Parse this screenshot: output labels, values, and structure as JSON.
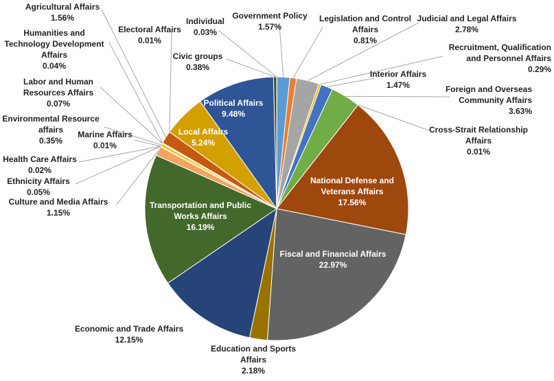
{
  "chart_data": {
    "type": "pie",
    "unit": "%",
    "slices": [
      {
        "label": "Individual",
        "value": 0.03,
        "value_text": "0.03%",
        "color": "#2e7d32"
      },
      {
        "label": "Government Policy",
        "value": 1.57,
        "value_text": "1.57%",
        "color": "#5b9bd5"
      },
      {
        "label": "Legislation and Control Affairs",
        "value": 0.81,
        "value_text": "0.81%",
        "color": "#ed7d31"
      },
      {
        "label": "Judicial and Legal Affairs",
        "value": 2.78,
        "value_text": "2.78%",
        "color": "#a5a5a5"
      },
      {
        "label": "Recruitment, Qualification and Personnel Affairs",
        "value": 0.29,
        "value_text": "0.29%",
        "color": "#ffc000"
      },
      {
        "label": "Interior Affairs",
        "value": 1.47,
        "value_text": "1.47%",
        "color": "#4472c4"
      },
      {
        "label": "Foreign and Overseas Community Affairs",
        "value": 3.63,
        "value_text": "3.63%",
        "color": "#70ad47"
      },
      {
        "label": "Cross-Strait Relationship Affairs",
        "value": 0.01,
        "value_text": "0.01%",
        "color": "#264478"
      },
      {
        "label": "National Defense and Veterans Affairs",
        "value": 17.56,
        "value_text": "17.56%",
        "color": "#9e480e"
      },
      {
        "label": "Fiscal and Financial Affairs",
        "value": 22.97,
        "value_text": "22.97%",
        "color": "#636363"
      },
      {
        "label": "Education and Sports Affairs",
        "value": 2.18,
        "value_text": "2.18%",
        "color": "#997300"
      },
      {
        "label": "Economic and Trade Affairs",
        "value": 12.15,
        "value_text": "12.15%",
        "color": "#264478"
      },
      {
        "label": "Transportation and Public Works Affairs",
        "value": 16.19,
        "value_text": "16.19%",
        "color": "#43682b"
      },
      {
        "label": "Culture and Media Affairs",
        "value": 1.15,
        "value_text": "1.15%",
        "color": "#f4a460"
      },
      {
        "label": "Ethnicity Affairs",
        "value": 0.05,
        "value_text": "0.05%",
        "color": "#bfbfbf"
      },
      {
        "label": "Health Care Affairs",
        "value": 0.02,
        "value_text": "0.02%",
        "color": "#ffd966"
      },
      {
        "label": "Marine Affairs",
        "value": 0.01,
        "value_text": "0.01%",
        "color": "#8faadc"
      },
      {
        "label": "Environmental Resource affairs",
        "value": 0.35,
        "value_text": "0.35%",
        "color": "#ffc000"
      },
      {
        "label": "Labor and Human Resources Affairs",
        "value": 0.07,
        "value_text": "0.07%",
        "color": "#a9d18e"
      },
      {
        "label": "Humanities and Technology Development Affairs",
        "value": 0.04,
        "value_text": "0.04%",
        "color": "#7f7f7f"
      },
      {
        "label": "Agricultural Affairs",
        "value": 1.56,
        "value_text": "1.56%",
        "color": "#c55a11"
      },
      {
        "label": "Electoral Affairs",
        "value": 0.01,
        "value_text": "0.01%",
        "color": "#8c8c8c"
      },
      {
        "label": "Local Affairs",
        "value": 5.24,
        "value_text": "5.24%",
        "color": "#d4a000"
      },
      {
        "label": "Political Affairs",
        "value": 9.48,
        "value_text": "9.48%",
        "color": "#2f5597"
      },
      {
        "label": "Civic groups",
        "value": 0.38,
        "value_text": "0.38%",
        "color": "#375623"
      }
    ],
    "title": "",
    "legend": "none"
  }
}
